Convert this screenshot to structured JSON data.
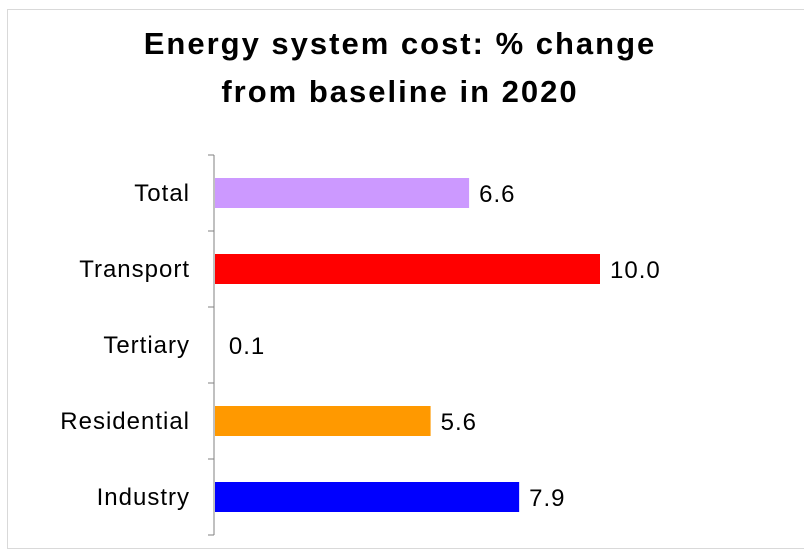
{
  "chart_data": {
    "type": "bar",
    "orientation": "horizontal",
    "title_lines": [
      "Energy system cost: % change",
      "from baseline in 2020"
    ],
    "categories": [
      "Total",
      "Transport",
      "Tertiary",
      "Residential",
      "Industry"
    ],
    "values": [
      6.6,
      10.0,
      0.1,
      5.6,
      7.9
    ],
    "value_labels": [
      "6.6",
      "10.0",
      "0.1",
      "5.6",
      "7.9"
    ],
    "colors": [
      "#cc99ff",
      "#ff0000",
      "#ffffff",
      "#ff9900",
      "#0000ff"
    ],
    "xlabel": "",
    "ylabel": "",
    "xlim": [
      0,
      10
    ],
    "grid": false,
    "legend": "none"
  }
}
